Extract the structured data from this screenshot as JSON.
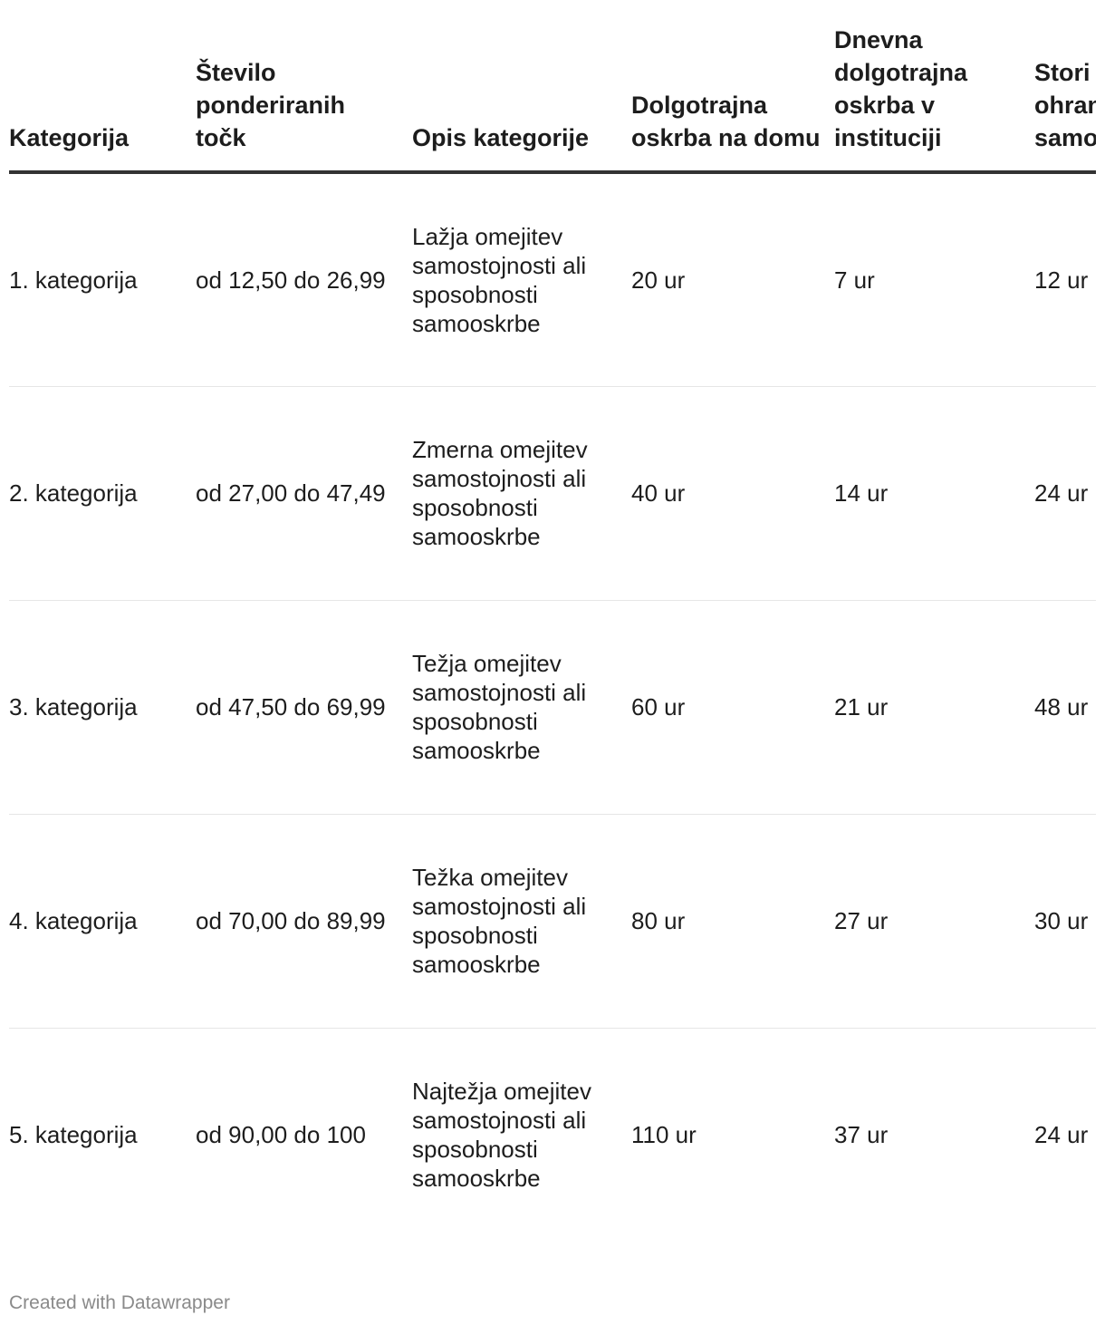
{
  "chart_data": {
    "type": "table",
    "columns": [
      "Kategorija",
      "Število ponderiranih točk",
      "Opis kategorije",
      "Dolgotrajna oskrba na domu",
      "Dnevna dolgotrajna oskrba v instituciji",
      "Stori krepi ohran samo"
    ],
    "rows": [
      [
        "1. kategorija",
        "od 12,50 do 26,99",
        "Lažja omejitev samostojnosti ali sposobnosti samooskrbe",
        "20 ur",
        "7 ur",
        "12 ur"
      ],
      [
        "2. kategorija",
        "od 27,00 do 47,49",
        "Zmerna omejitev samostojnosti ali sposobnosti samooskrbe",
        "40 ur",
        "14 ur",
        "24 ur"
      ],
      [
        "3. kategorija",
        "od 47,50 do 69,99",
        "Težja omejitev samostojnosti ali sposobnosti samooskrbe",
        "60 ur",
        "21 ur",
        "48 ur"
      ],
      [
        "4. kategorija",
        "od 70,00 do 89,99",
        "Težka omejitev samostojnosti ali sposobnosti samooskrbe",
        "80 ur",
        "27 ur",
        "30 ur"
      ],
      [
        "5. kategorija",
        "od 90,00 do 100",
        "Najtežja omejitev samostojnosti ali sposobnosti samooskrbe",
        "110 ur",
        "37 ur",
        "24 ur"
      ]
    ]
  },
  "footer": {
    "credit": "Created with Datawrapper"
  }
}
